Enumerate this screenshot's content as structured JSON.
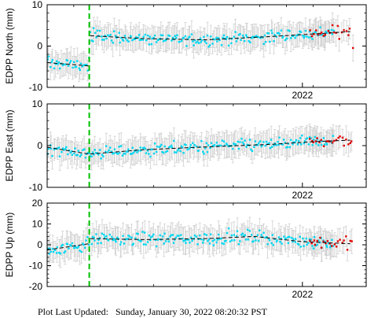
{
  "chart_data": [
    {
      "type": "scatter",
      "ylabel": "EDPP North (mm)",
      "ylim": [
        -10,
        10
      ],
      "yticks": [
        -10,
        0,
        10
      ],
      "x_tick_label": "2022",
      "x_tick_value": 2022.0,
      "xlim": [
        2021.2,
        2022.2
      ],
      "event_marker_x": 2021.332,
      "trend": [
        {
          "x": 2021.2,
          "y": -4.0
        },
        {
          "x": 2021.33,
          "y": -4.8
        },
        {
          "x": 2021.335,
          "y": 2.5
        },
        {
          "x": 2021.5,
          "y": 1.8
        },
        {
          "x": 2021.7,
          "y": 1.5
        },
        {
          "x": 2021.9,
          "y": 2.3
        },
        {
          "x": 2022.05,
          "y": 3.0
        },
        {
          "x": 2022.15,
          "y": 3.5
        }
      ],
      "series": [
        {
          "color": "#00d7f0",
          "x_range": [
            2021.2,
            2022.1
          ],
          "noise_center": [
            -3,
            2.5
          ],
          "n": 230
        },
        {
          "color": "#e00000",
          "x_range": [
            2022.02,
            2022.16
          ],
          "noise_center": [
            2.5,
            3.0
          ],
          "n": 22
        }
      ]
    },
    {
      "type": "scatter",
      "ylabel": "EDPP East (mm)",
      "ylim": [
        -10,
        10
      ],
      "yticks": [
        -10,
        0,
        10
      ],
      "x_tick_label": "2022",
      "x_tick_value": 2022.0,
      "xlim": [
        2021.2,
        2022.2
      ],
      "event_marker_x": 2021.332,
      "trend": [
        {
          "x": 2021.2,
          "y": -0.4
        },
        {
          "x": 2021.33,
          "y": -2.0
        },
        {
          "x": 2021.335,
          "y": -2.0
        },
        {
          "x": 2021.5,
          "y": -1.0
        },
        {
          "x": 2021.7,
          "y": -0.3
        },
        {
          "x": 2021.9,
          "y": 0.3
        },
        {
          "x": 2022.05,
          "y": 1.0
        },
        {
          "x": 2022.15,
          "y": 1.3
        }
      ],
      "series": [
        {
          "color": "#00d7f0",
          "x_range": [
            2021.2,
            2022.1
          ],
          "noise_center": [
            -1,
            0.5
          ],
          "n": 230
        },
        {
          "color": "#e00000",
          "x_range": [
            2022.02,
            2022.16
          ],
          "noise_center": [
            1.0,
            1.5
          ],
          "n": 22
        }
      ]
    },
    {
      "type": "scatter",
      "ylabel": "EDPP Up (mm)",
      "ylim": [
        -20,
        20
      ],
      "yticks": [
        -20,
        -10,
        0,
        10,
        20
      ],
      "x_tick_label": "2022",
      "x_tick_value": 2022.0,
      "xlim": [
        2021.2,
        2022.2
      ],
      "event_marker_x": 2021.332,
      "trend": [
        {
          "x": 2021.2,
          "y": -2.5
        },
        {
          "x": 2021.33,
          "y": 0.5
        },
        {
          "x": 2021.335,
          "y": 3.0
        },
        {
          "x": 2021.5,
          "y": 2.5
        },
        {
          "x": 2021.7,
          "y": 3.0
        },
        {
          "x": 2021.85,
          "y": 4.0
        },
        {
          "x": 2022.0,
          "y": 1.5
        },
        {
          "x": 2022.15,
          "y": 0.5
        }
      ],
      "series": [
        {
          "color": "#00d7f0",
          "x_range": [
            2021.2,
            2022.1
          ],
          "noise_center": [
            2,
            2
          ],
          "n": 230
        },
        {
          "color": "#e00000",
          "x_range": [
            2022.02,
            2022.16
          ],
          "noise_center": [
            0,
            0
          ],
          "n": 22
        }
      ]
    }
  ],
  "footer": {
    "label": "Plot Last Updated:",
    "value": "Sunday, January 30, 2022 08:20:32 PST"
  },
  "colors": {
    "errorbar": "#cfcfcf",
    "event_line": "#00c000",
    "trend_line": "#000000"
  }
}
